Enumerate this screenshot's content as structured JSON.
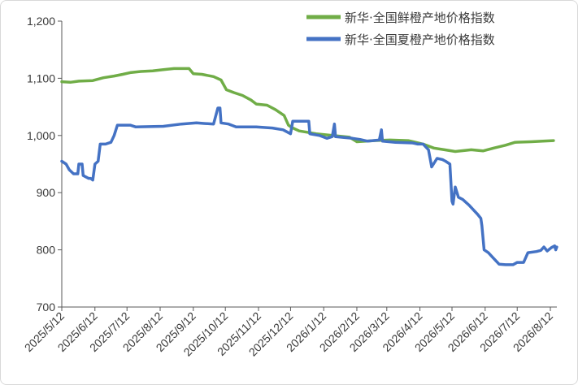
{
  "chart_data": {
    "type": "line",
    "title": "",
    "xlabel": "",
    "ylabel": "",
    "ylim": [
      700,
      1200
    ],
    "yticks": [
      700,
      800,
      900,
      1000,
      1100,
      1200
    ],
    "ytick_labels": [
      "700",
      "800",
      "900",
      "1,000",
      "1,100",
      "1,200"
    ],
    "xlim": [
      "2025-05-12",
      "2026-08-17"
    ],
    "xticks": [
      "2025-05-12",
      "2025-06-12",
      "2025-07-12",
      "2025-08-12",
      "2025-09-12",
      "2025-10-12",
      "2025-11-12",
      "2025-12-12",
      "2026-01-12",
      "2026-02-12",
      "2026-03-12",
      "2026-04-12",
      "2026-05-12",
      "2026-06-12",
      "2026-07-12",
      "2026-08-12"
    ],
    "xtick_labels": [
      "2025/5/12",
      "2025/6/12",
      "2025/7/12",
      "2025/8/12",
      "2025/9/12",
      "2025/10/12",
      "2025/11/12",
      "2025/12/12",
      "2026/1/12",
      "2026/2/12",
      "2026/3/12",
      "2026/4/12",
      "2026/5/12",
      "2026/6/12",
      "2026/7/12",
      "2026/8/12"
    ],
    "grid": false,
    "legend_position": "top-right",
    "series": [
      {
        "name": "新华·全国鲜橙产地价格指数",
        "color": "#70ad47",
        "points": [
          [
            "2025-05-12",
            1094
          ],
          [
            "2025-05-20",
            1093
          ],
          [
            "2025-05-28",
            1095
          ],
          [
            "2025-06-10",
            1096
          ],
          [
            "2025-06-20",
            1101
          ],
          [
            "2025-06-30",
            1104
          ],
          [
            "2025-07-08",
            1107
          ],
          [
            "2025-07-15",
            1110
          ],
          [
            "2025-07-25",
            1112
          ],
          [
            "2025-08-05",
            1113
          ],
          [
            "2025-08-15",
            1115
          ],
          [
            "2025-08-25",
            1117
          ],
          [
            "2025-09-08",
            1117
          ],
          [
            "2025-09-12",
            1108
          ],
          [
            "2025-09-20",
            1107
          ],
          [
            "2025-10-01",
            1103
          ],
          [
            "2025-10-08",
            1097
          ],
          [
            "2025-10-13",
            1080
          ],
          [
            "2025-10-20",
            1075
          ],
          [
            "2025-10-28",
            1070
          ],
          [
            "2025-11-05",
            1062
          ],
          [
            "2025-11-10",
            1055
          ],
          [
            "2025-11-20",
            1053
          ],
          [
            "2025-11-28",
            1045
          ],
          [
            "2025-12-06",
            1035
          ],
          [
            "2025-12-10",
            1018
          ],
          [
            "2025-12-13",
            1014
          ],
          [
            "2025-12-20",
            1008
          ],
          [
            "2026-01-05",
            1003
          ],
          [
            "2026-01-20",
            1000
          ],
          [
            "2026-02-05",
            997
          ],
          [
            "2026-02-12",
            989
          ],
          [
            "2026-02-28",
            991
          ],
          [
            "2026-03-15",
            992
          ],
          [
            "2026-04-01",
            991
          ],
          [
            "2026-04-15",
            985
          ],
          [
            "2026-04-25",
            978
          ],
          [
            "2026-05-05",
            975
          ],
          [
            "2026-05-15",
            972
          ],
          [
            "2026-05-30",
            975
          ],
          [
            "2026-06-10",
            973
          ],
          [
            "2026-06-20",
            978
          ],
          [
            "2026-07-01",
            983
          ],
          [
            "2026-07-10",
            988
          ],
          [
            "2026-07-25",
            989
          ],
          [
            "2026-08-05",
            990
          ],
          [
            "2026-08-15",
            991
          ]
        ]
      },
      {
        "name": "新华·全国夏橙产地价格指数",
        "color": "#4472c4",
        "points": [
          [
            "2025-05-12",
            955
          ],
          [
            "2025-05-16",
            950
          ],
          [
            "2025-05-19",
            940
          ],
          [
            "2025-05-23",
            933
          ],
          [
            "2025-05-27",
            933
          ],
          [
            "2025-05-28",
            950
          ],
          [
            "2025-05-31",
            950
          ],
          [
            "2025-06-01",
            930
          ],
          [
            "2025-06-06",
            925
          ],
          [
            "2025-06-08",
            925
          ],
          [
            "2025-06-10",
            922
          ],
          [
            "2025-06-12",
            950
          ],
          [
            "2025-06-15",
            955
          ],
          [
            "2025-06-17",
            985
          ],
          [
            "2025-06-22",
            985
          ],
          [
            "2025-06-27",
            988
          ],
          [
            "2025-06-30",
            1000
          ],
          [
            "2025-07-03",
            1018
          ],
          [
            "2025-07-15",
            1018
          ],
          [
            "2025-07-20",
            1015
          ],
          [
            "2025-08-15",
            1016
          ],
          [
            "2025-09-01",
            1020
          ],
          [
            "2025-09-15",
            1022
          ],
          [
            "2025-09-22",
            1021
          ],
          [
            "2025-10-01",
            1020
          ],
          [
            "2025-10-05",
            1048
          ],
          [
            "2025-10-07",
            1048
          ],
          [
            "2025-10-08",
            1022
          ],
          [
            "2025-10-15",
            1020
          ],
          [
            "2025-10-22",
            1015
          ],
          [
            "2025-11-10",
            1015
          ],
          [
            "2025-11-25",
            1013
          ],
          [
            "2025-12-05",
            1010
          ],
          [
            "2025-12-10",
            1005
          ],
          [
            "2025-12-12",
            1003
          ],
          [
            "2025-12-14",
            1025
          ],
          [
            "2025-12-29",
            1025
          ],
          [
            "2025-12-30",
            1003
          ],
          [
            "2026-01-08",
            1000
          ],
          [
            "2026-01-15",
            995
          ],
          [
            "2026-01-20",
            998
          ],
          [
            "2026-01-22",
            1020
          ],
          [
            "2026-01-23",
            998
          ],
          [
            "2026-02-08",
            995
          ],
          [
            "2026-02-15",
            993
          ],
          [
            "2026-02-22",
            990
          ],
          [
            "2026-03-05",
            992
          ],
          [
            "2026-03-07",
            1010
          ],
          [
            "2026-03-08",
            990
          ],
          [
            "2026-03-20",
            988
          ],
          [
            "2026-04-05",
            987
          ],
          [
            "2026-04-10",
            985
          ],
          [
            "2026-04-15",
            985
          ],
          [
            "2026-04-20",
            975
          ],
          [
            "2026-04-23",
            945
          ],
          [
            "2026-04-28",
            960
          ],
          [
            "2026-05-03",
            958
          ],
          [
            "2026-05-06",
            955
          ],
          [
            "2026-05-10",
            950
          ],
          [
            "2026-05-12",
            885
          ],
          [
            "2026-05-13",
            880
          ],
          [
            "2026-05-15",
            910
          ],
          [
            "2026-05-18",
            892
          ],
          [
            "2026-05-22",
            888
          ],
          [
            "2026-05-28",
            878
          ],
          [
            "2026-06-01",
            870
          ],
          [
            "2026-06-05",
            862
          ],
          [
            "2026-06-08",
            855
          ],
          [
            "2026-06-09",
            842
          ],
          [
            "2026-06-11",
            800
          ],
          [
            "2026-06-15",
            795
          ],
          [
            "2026-06-20",
            785
          ],
          [
            "2026-06-25",
            775
          ],
          [
            "2026-07-01",
            774
          ],
          [
            "2026-07-08",
            774
          ],
          [
            "2026-07-12",
            778
          ],
          [
            "2026-07-18",
            778
          ],
          [
            "2026-07-22",
            795
          ],
          [
            "2026-07-30",
            797
          ],
          [
            "2026-08-03",
            799
          ],
          [
            "2026-08-06",
            805
          ],
          [
            "2026-08-09",
            798
          ],
          [
            "2026-08-13",
            804
          ],
          [
            "2026-08-16",
            807
          ],
          [
            "2026-08-17",
            800
          ],
          [
            "2026-08-18",
            805
          ]
        ]
      }
    ]
  }
}
